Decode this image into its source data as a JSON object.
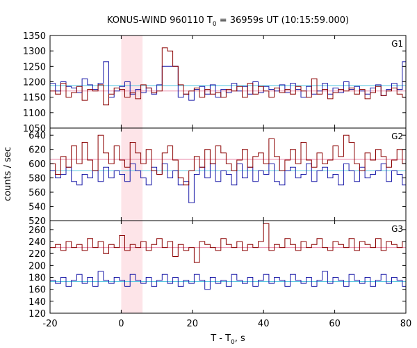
{
  "chart_data": {
    "type": "line",
    "title_main": "KONUS-WIND 960110 T",
    "title_sub": "0",
    "title_rest": " = 36959s UT (10:15:59.000)",
    "xlabel_main": "T - T",
    "xlabel_sub": "0",
    "xlabel_rest": ", s",
    "ylabel": "counts / sec",
    "xlim": [
      -20,
      80
    ],
    "x_ticks": [
      "-20",
      "0",
      "20",
      "40",
      "60",
      "80"
    ],
    "highlight_interval": [
      0,
      6
    ],
    "bin_width": 1.5,
    "bins_start": -20,
    "colors": {
      "red": "#8b0000",
      "blue": "#1a1aa8",
      "pink": "#e88aa8",
      "cyan": "#5bc8e0",
      "highlight": "#fde4e8"
    },
    "panels": [
      {
        "name": "G1",
        "ylim": [
          1050,
          1350
        ],
        "y_ticks": [
          "1050",
          "1100",
          "1150",
          "1200",
          "1250",
          "1300",
          "1350"
        ],
        "red_values": [
          1170,
          1160,
          1195,
          1150,
          1165,
          1185,
          1140,
          1175,
          1170,
          1190,
          1125,
          1160,
          1180,
          1175,
          1150,
          1165,
          1145,
          1190,
          1180,
          1165,
          1170,
          1310,
          1300,
          1250,
          1190,
          1160,
          1170,
          1180,
          1150,
          1175,
          1160,
          1165,
          1150,
          1175,
          1170,
          1185,
          1150,
          1195,
          1160,
          1185,
          1170,
          1150,
          1180,
          1165,
          1175,
          1160,
          1185,
          1170,
          1150,
          1210,
          1160,
          1175,
          1145,
          1165,
          1175,
          1170,
          1180,
          1160,
          1175,
          1145,
          1165,
          1185,
          1155,
          1170,
          1180,
          1160,
          1150
        ],
        "blue_values": [
          1195,
          1170,
          1200,
          1185,
          1180,
          1165,
          1210,
          1190,
          1175,
          1195,
          1265,
          1150,
          1170,
          1185,
          1200,
          1160,
          1175,
          1165,
          1180,
          1160,
          1190,
          1250,
          1250,
          1250,
          1150,
          1160,
          1140,
          1175,
          1185,
          1160,
          1190,
          1150,
          1175,
          1165,
          1195,
          1170,
          1185,
          1160,
          1200,
          1165,
          1185,
          1175,
          1170,
          1190,
          1165,
          1195,
          1175,
          1150,
          1185,
          1160,
          1170,
          1195,
          1160,
          1180,
          1165,
          1200,
          1175,
          1185,
          1170,
          1160,
          1180,
          1190,
          1155,
          1175,
          1195,
          1175,
          1265
        ],
        "red_mean": 1170,
        "blue_mean": 1188
      },
      {
        "name": "G2",
        "ylim": [
          520,
          650
        ],
        "y_ticks": [
          "520",
          "540",
          "560",
          "580",
          "600",
          "620",
          "640"
        ],
        "red_values": [
          600,
          585,
          610,
          595,
          625,
          600,
          630,
          605,
          590,
          640,
          615,
          600,
          625,
          605,
          595,
          630,
          615,
          600,
          620,
          590,
          585,
          615,
          625,
          605,
          580,
          570,
          590,
          610,
          595,
          620,
          600,
          625,
          615,
          600,
          590,
          605,
          620,
          595,
          610,
          615,
          600,
          635,
          610,
          590,
          605,
          620,
          600,
          630,
          605,
          595,
          615,
          600,
          605,
          625,
          610,
          640,
          630,
          600,
          590,
          615,
          605,
          620,
          610,
          595,
          605,
          620,
          600
        ],
        "blue_values": [
          590,
          580,
          585,
          595,
          575,
          570,
          585,
          580,
          590,
          575,
          595,
          580,
          590,
          585,
          575,
          600,
          590,
          580,
          570,
          595,
          585,
          600,
          580,
          590,
          570,
          575,
          545,
          585,
          595,
          580,
          600,
          575,
          590,
          585,
          570,
          600,
          580,
          595,
          575,
          590,
          585,
          600,
          575,
          570,
          590,
          595,
          580,
          585,
          600,
          575,
          590,
          595,
          580,
          585,
          570,
          600,
          590,
          575,
          595,
          580,
          585,
          590,
          600,
          575,
          590,
          585,
          570
        ],
        "red_mean": 606,
        "blue_mean": 590
      },
      {
        "name": "G3",
        "ylim": [
          120,
          275
        ],
        "y_ticks": [
          "120",
          "140",
          "160",
          "180",
          "200",
          "220",
          "240",
          "260"
        ],
        "red_values": [
          230,
          235,
          225,
          240,
          230,
          235,
          225,
          245,
          230,
          240,
          220,
          235,
          230,
          250,
          225,
          235,
          230,
          240,
          225,
          235,
          245,
          230,
          240,
          215,
          235,
          225,
          230,
          205,
          240,
          235,
          230,
          225,
          245,
          235,
          230,
          240,
          225,
          235,
          230,
          240,
          270,
          225,
          235,
          230,
          245,
          235,
          225,
          240,
          230,
          235,
          245,
          230,
          225,
          240,
          235,
          230,
          245,
          225,
          240,
          235,
          230,
          245,
          225,
          240,
          235,
          230,
          240
        ],
        "blue_values": [
          175,
          170,
          180,
          165,
          175,
          185,
          170,
          180,
          165,
          190,
          175,
          170,
          180,
          175,
          165,
          185,
          175,
          170,
          180,
          165,
          175,
          185,
          170,
          180,
          165,
          175,
          170,
          185,
          175,
          160,
          180,
          170,
          175,
          165,
          185,
          175,
          170,
          180,
          165,
          175,
          185,
          170,
          180,
          175,
          165,
          185,
          175,
          170,
          180,
          165,
          175,
          190,
          170,
          180,
          175,
          165,
          185,
          175,
          170,
          180,
          165,
          175,
          185,
          170,
          180,
          175,
          165
        ],
        "red_mean": 230,
        "blue_mean": 173
      }
    ]
  }
}
